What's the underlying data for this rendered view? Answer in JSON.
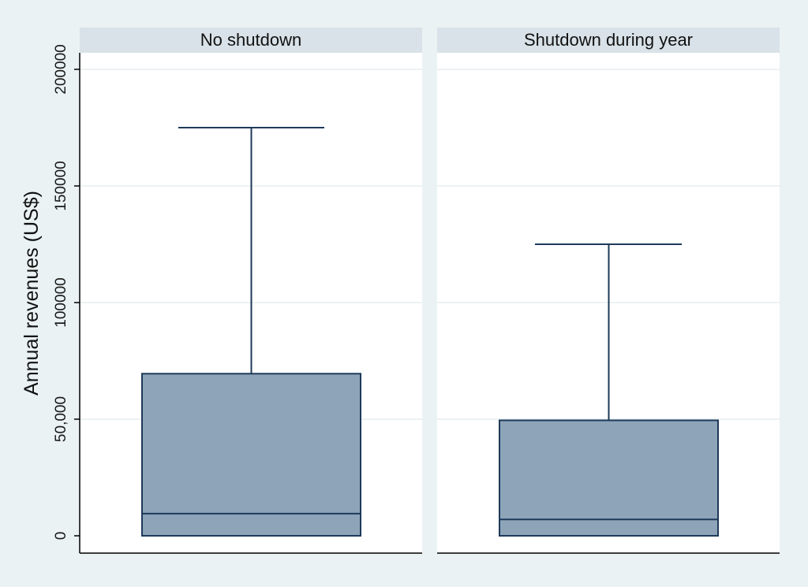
{
  "colors": {
    "background": "#eaf2f3",
    "panel_background": "#ffffff",
    "panel_header": "#d8e2e8",
    "box_fill": "#8ea4b8",
    "box_stroke": "#1e3a5a",
    "grid": "#e6eef0",
    "axis": "#000000"
  },
  "chart_data": {
    "type": "box",
    "ylabel": "Annual revenues (US$)",
    "ylim": [
      0,
      206000
    ],
    "yticks": [
      {
        "value": 0,
        "label": "0"
      },
      {
        "value": 50000,
        "label": "50,000"
      },
      {
        "value": 100000,
        "label": "100000"
      },
      {
        "value": 150000,
        "label": "150000"
      },
      {
        "value": 200000,
        "label": "200000"
      }
    ],
    "grid": true,
    "panels": [
      {
        "title": "No shutdown",
        "min": 0,
        "q1": 0,
        "median": 9500,
        "q3": 69500,
        "upper_whisker": 175000
      },
      {
        "title": "Shutdown during year",
        "min": 0,
        "q1": 0,
        "median": 7000,
        "q3": 49500,
        "upper_whisker": 125000
      }
    ]
  }
}
